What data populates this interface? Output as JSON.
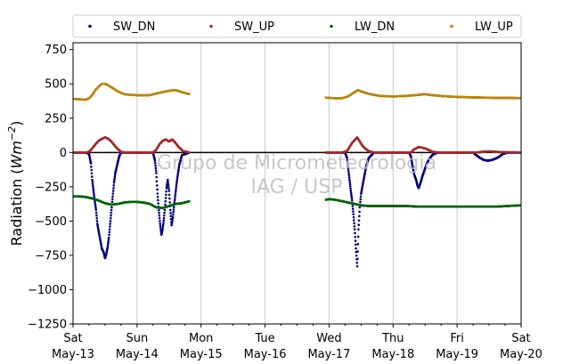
{
  "chart_data": {
    "type": "scatter",
    "ylabel": "Radiation",
    "ylabel_unit_base": "Wm",
    "ylabel_unit_exp": "−2",
    "ylim": [
      -1250,
      800
    ],
    "yticks": [
      {
        "value": 750,
        "label": "750"
      },
      {
        "value": 500,
        "label": "500"
      },
      {
        "value": 250,
        "label": "250"
      },
      {
        "value": 0,
        "label": "0"
      },
      {
        "value": -250,
        "label": "−250"
      },
      {
        "value": -500,
        "label": "−500"
      },
      {
        "value": -750,
        "label": "−750"
      },
      {
        "value": -1000,
        "label": "−1000"
      },
      {
        "value": -1250,
        "label": "−1250"
      }
    ],
    "x_unit": "days from Sat May-13 00:00",
    "xlim": [
      0,
      7
    ],
    "xticks": [
      {
        "value": 0,
        "day": "Sat",
        "date": "May-13"
      },
      {
        "value": 1,
        "day": "Sun",
        "date": "May-14"
      },
      {
        "value": 2,
        "day": "Mon",
        "date": "May-15"
      },
      {
        "value": 3,
        "day": "Tue",
        "date": "May-16"
      },
      {
        "value": 4,
        "day": "Wed",
        "date": "May-17"
      },
      {
        "value": 5,
        "day": "Thu",
        "date": "May-18"
      },
      {
        "value": 6,
        "day": "Fri",
        "date": "May-19"
      },
      {
        "value": 7,
        "day": "Sat",
        "date": "May-20"
      }
    ],
    "grid": "vertical",
    "zero_line": true,
    "legend_placement": "top, outside, 4 columns",
    "series": [
      {
        "name": "SW_DN",
        "color": "#00007f",
        "points": [
          [
            0.0,
            0
          ],
          [
            0.2,
            0
          ],
          [
            0.25,
            -10
          ],
          [
            0.28,
            -80
          ],
          [
            0.3,
            -200
          ],
          [
            0.33,
            -320
          ],
          [
            0.36,
            -420
          ],
          [
            0.38,
            -520
          ],
          [
            0.41,
            -600
          ],
          [
            0.43,
            -650
          ],
          [
            0.45,
            -700
          ],
          [
            0.48,
            -730
          ],
          [
            0.5,
            -770
          ],
          [
            0.52,
            -740
          ],
          [
            0.54,
            -690
          ],
          [
            0.56,
            -620
          ],
          [
            0.58,
            -520
          ],
          [
            0.6,
            -420
          ],
          [
            0.62,
            -320
          ],
          [
            0.64,
            -220
          ],
          [
            0.66,
            -150
          ],
          [
            0.69,
            -90
          ],
          [
            0.72,
            -30
          ],
          [
            0.75,
            0
          ],
          [
            1.0,
            0
          ],
          [
            1.25,
            0
          ],
          [
            1.28,
            -60
          ],
          [
            1.3,
            -150
          ],
          [
            1.32,
            -300
          ],
          [
            1.34,
            -420
          ],
          [
            1.36,
            -520
          ],
          [
            1.38,
            -600
          ],
          [
            1.4,
            -560
          ],
          [
            1.42,
            -480
          ],
          [
            1.44,
            -380
          ],
          [
            1.46,
            -260
          ],
          [
            1.48,
            -200
          ],
          [
            1.5,
            -280
          ],
          [
            1.52,
            -420
          ],
          [
            1.54,
            -530
          ],
          [
            1.56,
            -470
          ],
          [
            1.58,
            -380
          ],
          [
            1.6,
            -300
          ],
          [
            1.62,
            -220
          ],
          [
            1.64,
            -150
          ],
          [
            1.66,
            -90
          ],
          [
            1.7,
            -20
          ],
          [
            1.82,
            0
          ],
          [
            3.95,
            0
          ],
          [
            4.1,
            0
          ],
          [
            4.25,
            0
          ],
          [
            4.28,
            -40
          ],
          [
            4.3,
            -120
          ],
          [
            4.32,
            -200
          ],
          [
            4.34,
            -280
          ],
          [
            4.36,
            -350
          ],
          [
            4.38,
            -450
          ],
          [
            4.4,
            -560
          ],
          [
            4.42,
            -700
          ],
          [
            4.44,
            -830
          ],
          [
            4.46,
            -560
          ],
          [
            4.48,
            -400
          ],
          [
            4.5,
            -300
          ],
          [
            4.52,
            -250
          ],
          [
            4.54,
            -200
          ],
          [
            4.56,
            -150
          ],
          [
            4.58,
            -100
          ],
          [
            4.62,
            -40
          ],
          [
            4.7,
            0
          ],
          [
            5.0,
            0
          ],
          [
            5.25,
            0
          ],
          [
            5.28,
            -30
          ],
          [
            5.3,
            -90
          ],
          [
            5.33,
            -160
          ],
          [
            5.36,
            -200
          ],
          [
            5.38,
            -240
          ],
          [
            5.4,
            -260
          ],
          [
            5.43,
            -220
          ],
          [
            5.46,
            -170
          ],
          [
            5.49,
            -130
          ],
          [
            5.52,
            -90
          ],
          [
            5.56,
            -50
          ],
          [
            5.62,
            -15
          ],
          [
            5.7,
            0
          ],
          [
            6.0,
            0
          ],
          [
            6.25,
            0
          ],
          [
            6.3,
            -20
          ],
          [
            6.36,
            -40
          ],
          [
            6.42,
            -55
          ],
          [
            6.48,
            -60
          ],
          [
            6.54,
            -55
          ],
          [
            6.6,
            -45
          ],
          [
            6.66,
            -30
          ],
          [
            6.72,
            -10
          ],
          [
            6.8,
            0
          ],
          [
            7.0,
            0
          ]
        ]
      },
      {
        "name": "SW_UP",
        "color": "#a52a2a",
        "points": [
          [
            0.0,
            0
          ],
          [
            0.2,
            0
          ],
          [
            0.25,
            5
          ],
          [
            0.3,
            30
          ],
          [
            0.35,
            60
          ],
          [
            0.4,
            85
          ],
          [
            0.45,
            100
          ],
          [
            0.5,
            110
          ],
          [
            0.55,
            100
          ],
          [
            0.6,
            80
          ],
          [
            0.65,
            50
          ],
          [
            0.7,
            25
          ],
          [
            0.75,
            5
          ],
          [
            0.8,
            0
          ],
          [
            1.0,
            0
          ],
          [
            1.25,
            0
          ],
          [
            1.3,
            20
          ],
          [
            1.35,
            60
          ],
          [
            1.4,
            85
          ],
          [
            1.45,
            95
          ],
          [
            1.5,
            80
          ],
          [
            1.55,
            95
          ],
          [
            1.6,
            70
          ],
          [
            1.65,
            40
          ],
          [
            1.72,
            10
          ],
          [
            1.82,
            0
          ],
          [
            3.95,
            0
          ],
          [
            4.2,
            0
          ],
          [
            4.28,
            10
          ],
          [
            4.32,
            40
          ],
          [
            4.36,
            70
          ],
          [
            4.4,
            90
          ],
          [
            4.44,
            110
          ],
          [
            4.48,
            80
          ],
          [
            4.52,
            50
          ],
          [
            4.56,
            30
          ],
          [
            4.62,
            10
          ],
          [
            4.7,
            0
          ],
          [
            5.0,
            0
          ],
          [
            5.28,
            0
          ],
          [
            5.32,
            20
          ],
          [
            5.36,
            30
          ],
          [
            5.4,
            40
          ],
          [
            5.45,
            35
          ],
          [
            5.5,
            30
          ],
          [
            5.55,
            20
          ],
          [
            5.62,
            5
          ],
          [
            5.7,
            0
          ],
          [
            6.0,
            0
          ],
          [
            6.3,
            0
          ],
          [
            6.4,
            5
          ],
          [
            6.5,
            8
          ],
          [
            6.6,
            5
          ],
          [
            6.7,
            2
          ],
          [
            7.0,
            0
          ]
        ]
      },
      {
        "name": "LW_DN",
        "color": "#006400",
        "points": [
          [
            0.0,
            -320
          ],
          [
            0.1,
            -320
          ],
          [
            0.2,
            -325
          ],
          [
            0.3,
            -335
          ],
          [
            0.4,
            -350
          ],
          [
            0.5,
            -370
          ],
          [
            0.6,
            -380
          ],
          [
            0.7,
            -375
          ],
          [
            0.8,
            -365
          ],
          [
            0.9,
            -360
          ],
          [
            1.0,
            -360
          ],
          [
            1.1,
            -365
          ],
          [
            1.2,
            -375
          ],
          [
            1.3,
            -400
          ],
          [
            1.4,
            -405
          ],
          [
            1.5,
            -390
          ],
          [
            1.6,
            -375
          ],
          [
            1.7,
            -370
          ],
          [
            1.82,
            -355
          ],
          [
            3.95,
            -345
          ],
          [
            4.0,
            -340
          ],
          [
            4.1,
            -345
          ],
          [
            4.2,
            -355
          ],
          [
            4.3,
            -365
          ],
          [
            4.4,
            -375
          ],
          [
            4.5,
            -385
          ],
          [
            4.6,
            -390
          ],
          [
            4.7,
            -390
          ],
          [
            4.8,
            -390
          ],
          [
            4.9,
            -390
          ],
          [
            5.0,
            -390
          ],
          [
            5.2,
            -390
          ],
          [
            5.4,
            -395
          ],
          [
            5.6,
            -395
          ],
          [
            5.8,
            -395
          ],
          [
            6.0,
            -395
          ],
          [
            6.2,
            -395
          ],
          [
            6.4,
            -395
          ],
          [
            6.6,
            -395
          ],
          [
            6.8,
            -390
          ],
          [
            7.0,
            -385
          ]
        ]
      },
      {
        "name": "LW_UP",
        "color": "#b8860b",
        "points": [
          [
            0.0,
            390
          ],
          [
            0.1,
            388
          ],
          [
            0.2,
            385
          ],
          [
            0.25,
            395
          ],
          [
            0.3,
            420
          ],
          [
            0.35,
            455
          ],
          [
            0.4,
            480
          ],
          [
            0.45,
            500
          ],
          [
            0.5,
            500
          ],
          [
            0.55,
            490
          ],
          [
            0.6,
            475
          ],
          [
            0.65,
            460
          ],
          [
            0.7,
            445
          ],
          [
            0.75,
            435
          ],
          [
            0.8,
            425
          ],
          [
            0.9,
            420
          ],
          [
            1.0,
            418
          ],
          [
            1.1,
            417
          ],
          [
            1.2,
            418
          ],
          [
            1.3,
            430
          ],
          [
            1.4,
            440
          ],
          [
            1.5,
            450
          ],
          [
            1.6,
            455
          ],
          [
            1.7,
            440
          ],
          [
            1.82,
            425
          ],
          [
            3.95,
            400
          ],
          [
            4.0,
            398
          ],
          [
            4.1,
            395
          ],
          [
            4.2,
            395
          ],
          [
            4.3,
            410
          ],
          [
            4.4,
            440
          ],
          [
            4.45,
            455
          ],
          [
            4.5,
            445
          ],
          [
            4.6,
            430
          ],
          [
            4.7,
            420
          ],
          [
            4.8,
            412
          ],
          [
            5.0,
            408
          ],
          [
            5.2,
            412
          ],
          [
            5.4,
            420
          ],
          [
            5.5,
            425
          ],
          [
            5.6,
            418
          ],
          [
            5.8,
            410
          ],
          [
            6.0,
            405
          ],
          [
            6.2,
            402
          ],
          [
            6.4,
            400
          ],
          [
            6.6,
            398
          ],
          [
            6.8,
            398
          ],
          [
            7.0,
            396
          ]
        ]
      }
    ]
  },
  "watermark": {
    "line1": "Grupo de Micrometeorologia",
    "line2": "IAG / USP"
  }
}
